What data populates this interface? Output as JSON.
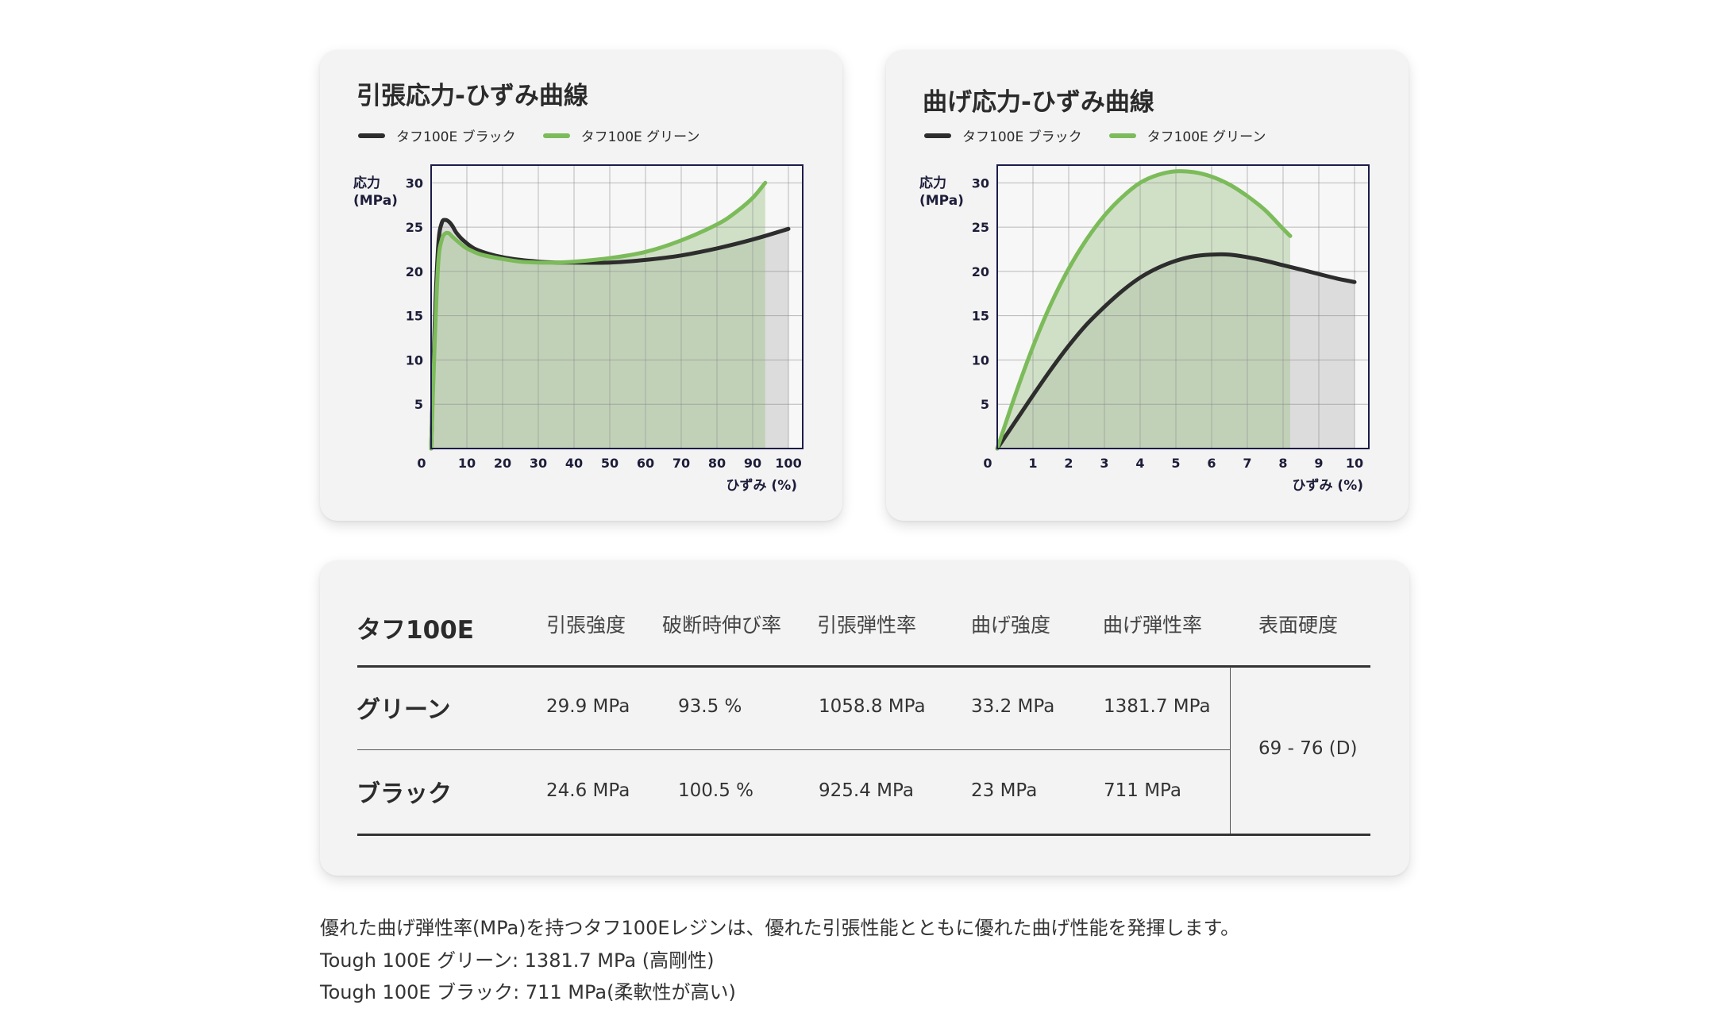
{
  "charts": [
    {
      "title": "引張応力-ひずみ曲線",
      "legend": [
        {
          "label": "タフ100E ブラック",
          "color": "#2d2d2d"
        },
        {
          "label": "タフ100E グリーン",
          "color": "#7cbb5a"
        }
      ],
      "ylabel_line1": "応力",
      "ylabel_line2": "(MPa)",
      "xlabel": "ひずみ (%)"
    },
    {
      "title": "曲げ応力-ひずみ曲線",
      "legend": [
        {
          "label": "タフ100E ブラック",
          "color": "#2d2d2d"
        },
        {
          "label": "タフ100E グリーン",
          "color": "#7cbb5a"
        }
      ],
      "ylabel_line1": "応力",
      "ylabel_line2": "(MPa)",
      "xlabel": "ひずみ (%)"
    }
  ],
  "chart_data": [
    {
      "type": "line",
      "title": "引張応力-ひずみ曲線",
      "xlabel": "ひずみ (%)",
      "ylabel": "応力 (MPa)",
      "xlim": [
        0,
        104
      ],
      "ylim": [
        0,
        32
      ],
      "xticks": [
        0,
        10,
        20,
        30,
        40,
        50,
        60,
        70,
        80,
        90,
        100
      ],
      "yticks": [
        5,
        10,
        15,
        20,
        25,
        30
      ],
      "grid": true,
      "legend_position": "top-left",
      "series": [
        {
          "name": "タフ100E ブラック",
          "color": "#2d2d2d",
          "fill": "#dcdcdc",
          "x": [
            0,
            1,
            2,
            3,
            4,
            5,
            6,
            7,
            9,
            12,
            16,
            20,
            25,
            30,
            35,
            40,
            50,
            60,
            70,
            80,
            90,
            100
          ],
          "y": [
            0,
            14,
            23,
            25.5,
            25.8,
            25.6,
            25.1,
            24.4,
            23.5,
            22.6,
            22.0,
            21.6,
            21.3,
            21.1,
            21.0,
            21.0,
            21.0,
            21.3,
            21.8,
            22.6,
            23.6,
            24.8
          ]
        },
        {
          "name": "タフ100E グリーン",
          "color": "#7cbb5a",
          "fill": "#9fc48c",
          "x": [
            0,
            1,
            2,
            3,
            4,
            5,
            6,
            8,
            10,
            14,
            20,
            25,
            30,
            35,
            40,
            50,
            60,
            70,
            80,
            85,
            90,
            93.5
          ],
          "y": [
            0,
            12,
            21,
            23.6,
            24.3,
            24.3,
            23.9,
            23.2,
            22.6,
            21.9,
            21.4,
            21.1,
            21.0,
            21.0,
            21.1,
            21.5,
            22.2,
            23.5,
            25.3,
            26.6,
            28.3,
            30.0
          ]
        }
      ]
    },
    {
      "type": "line",
      "title": "曲げ応力-ひずみ曲線",
      "xlabel": "ひずみ (%)",
      "ylabel": "応力 (MPa)",
      "xlim": [
        0,
        10.4
      ],
      "ylim": [
        0,
        32
      ],
      "xticks": [
        0,
        1,
        2,
        3,
        4,
        5,
        6,
        7,
        8,
        9,
        10
      ],
      "yticks": [
        5,
        10,
        15,
        20,
        25,
        30
      ],
      "grid": true,
      "legend_position": "top-left",
      "series": [
        {
          "name": "タフ100E ブラック",
          "color": "#2d2d2d",
          "fill": "#dcdcdc",
          "x": [
            0,
            0.5,
            1,
            1.5,
            2,
            2.5,
            3,
            3.5,
            4,
            4.5,
            5,
            5.5,
            6,
            6.5,
            7,
            7.5,
            8,
            8.5,
            9,
            9.5,
            10
          ],
          "y": [
            0,
            3.0,
            6.0,
            8.9,
            11.6,
            14.0,
            16.0,
            17.8,
            19.3,
            20.4,
            21.2,
            21.7,
            21.9,
            21.9,
            21.6,
            21.2,
            20.7,
            20.2,
            19.7,
            19.2,
            18.8
          ]
        },
        {
          "name": "タフ100E グリーン",
          "color": "#7cbb5a",
          "fill": "#9fc48c",
          "x": [
            0,
            0.5,
            1,
            1.5,
            2,
            2.5,
            3,
            3.5,
            4,
            4.5,
            5,
            5.5,
            6,
            6.5,
            7,
            7.5,
            8,
            8.2
          ],
          "y": [
            0,
            6.0,
            11.5,
            16.3,
            20.3,
            23.6,
            26.3,
            28.4,
            30.0,
            30.9,
            31.3,
            31.2,
            30.7,
            29.8,
            28.5,
            26.9,
            24.8,
            24.0
          ]
        }
      ]
    }
  ],
  "table": {
    "brand": "タフ100E",
    "headers": [
      "引張強度",
      "破断時伸び率",
      "引張弾性率",
      "曲げ強度",
      "曲げ弾性率",
      "表面硬度"
    ],
    "rows": [
      {
        "label": "グリーン",
        "values": [
          "29.9 MPa",
          "93.5 %",
          "1058.8 MPa",
          "33.2 MPa",
          "1381.7 MPa"
        ]
      },
      {
        "label": "ブラック",
        "values": [
          "24.6 MPa",
          "100.5 %",
          "925.4 MPa",
          "23 MPa",
          "711 MPa"
        ]
      }
    ],
    "hardness": "69 - 76 (D)"
  },
  "description": [
    "優れた曲げ弾性率(MPa)を持つタフ100Eレジンは、優れた引張性能とともに優れた曲げ性能を発揮します。",
    "Tough 100E グリーン: 1381.7 MPa (高剛性)",
    "Tough 100E ブラック: 711 MPa(柔軟性が高い)"
  ]
}
